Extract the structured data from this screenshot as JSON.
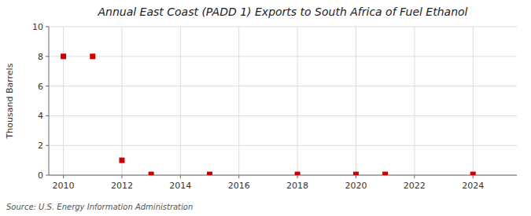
{
  "chart_data": {
    "type": "scatter",
    "title": "Annual East Coast (PADD 1) Exports to South Africa of Fuel Ethanol",
    "ylabel": "Thousand Barrels",
    "source": "Source: U.S. Energy Information Administration",
    "x": [
      2010,
      2011,
      2012,
      2013,
      2015,
      2018,
      2020,
      2021,
      2024
    ],
    "values": [
      8,
      8,
      1,
      0.05,
      0.05,
      0.05,
      0.05,
      0.05,
      0.05
    ],
    "color": "#cc0000",
    "marker": "square",
    "xlim": [
      2009.5,
      2025.5
    ],
    "ylim": [
      0,
      10
    ],
    "xticks": [
      2010,
      2012,
      2014,
      2016,
      2018,
      2020,
      2022,
      2024
    ],
    "yticks": [
      0,
      2,
      4,
      6,
      8,
      10
    ],
    "grid": true
  }
}
